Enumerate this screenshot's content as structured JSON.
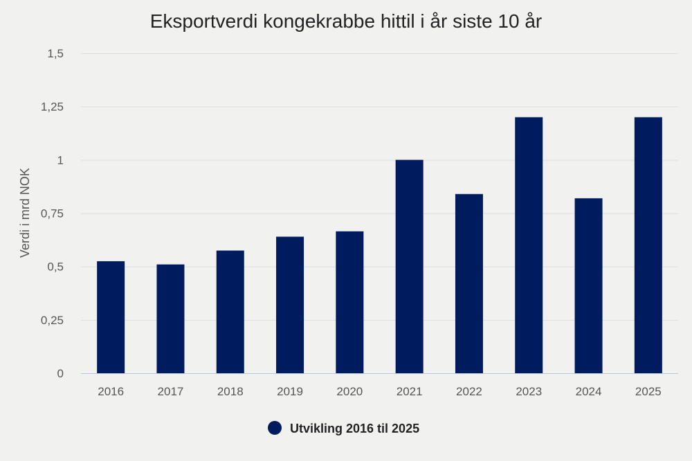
{
  "chart_data": {
    "type": "bar",
    "title": "Eksportverdi kongekrabbe hittil i år siste 10 år",
    "ylabel": "Verdi i mrd NOK",
    "xlabel": "",
    "categories": [
      "2016",
      "2017",
      "2018",
      "2019",
      "2020",
      "2021",
      "2022",
      "2023",
      "2024",
      "2025"
    ],
    "series": [
      {
        "name": "Utvikling 2016 til 2025",
        "values": [
          0.525,
          0.51,
          0.575,
          0.64,
          0.665,
          1.0,
          0.84,
          1.2,
          0.82,
          1.2
        ]
      }
    ],
    "ylim": [
      0,
      1.5
    ],
    "yticks": [
      0,
      0.25,
      0.5,
      0.75,
      1,
      1.25,
      1.5
    ],
    "ytick_labels": [
      "0",
      "0,25",
      "0,5",
      "0,75",
      "1",
      "1,25",
      "1,5"
    ],
    "grid": true,
    "legend": "bottom-center",
    "colors": {
      "bar": "#001b5e",
      "background": "#f1f2f0"
    }
  }
}
